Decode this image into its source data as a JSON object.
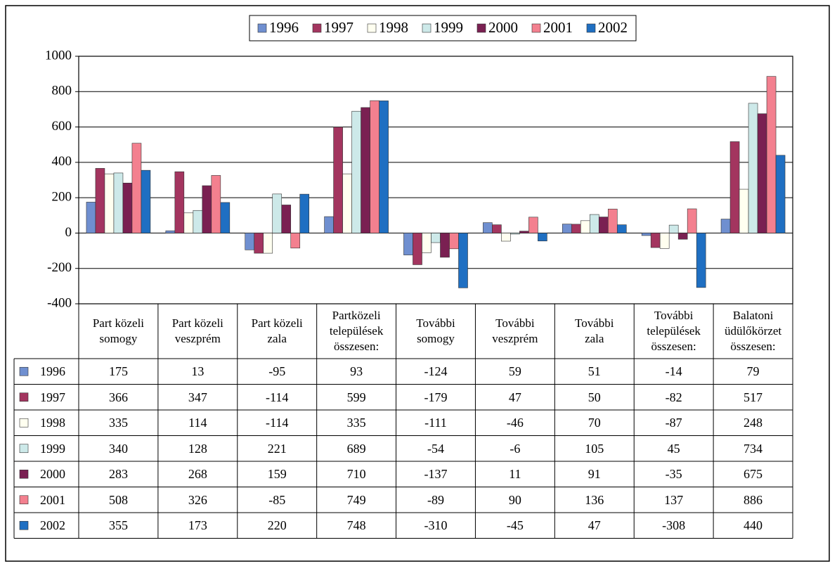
{
  "chart_data": {
    "type": "bar",
    "categories": [
      "Part közeli\nsomogy",
      "Part közeli\nveszprém",
      "Part közeli\nzala",
      "Partközeli\ntelepülések\nösszesen:",
      "További\nsomogy",
      "További\nveszprém",
      "További\nzala",
      "További\ntelepülések\nösszesen:",
      "Balatoni\nüdülőkörzet\nösszesen:"
    ],
    "series": [
      {
        "name": "1996",
        "color": "#6f8fd0",
        "values": [
          175,
          13,
          -95,
          93,
          -124,
          59,
          51,
          -14,
          79
        ]
      },
      {
        "name": "1997",
        "color": "#a3355f",
        "values": [
          366,
          347,
          -114,
          599,
          -179,
          47,
          50,
          -82,
          517
        ]
      },
      {
        "name": "1998",
        "color": "#fffff0",
        "values": [
          335,
          114,
          -114,
          335,
          -111,
          -46,
          70,
          -87,
          248
        ]
      },
      {
        "name": "1999",
        "color": "#cde9e9",
        "values": [
          340,
          128,
          221,
          689,
          -54,
          -6,
          105,
          45,
          734
        ]
      },
      {
        "name": "2000",
        "color": "#7a2052",
        "values": [
          283,
          268,
          159,
          710,
          -137,
          11,
          91,
          -35,
          675
        ]
      },
      {
        "name": "2001",
        "color": "#f3808f",
        "values": [
          508,
          326,
          -85,
          749,
          -89,
          90,
          136,
          137,
          886
        ]
      },
      {
        "name": "2002",
        "color": "#1f6fc2",
        "values": [
          355,
          173,
          220,
          748,
          -310,
          -45,
          47,
          -308,
          440
        ]
      }
    ],
    "ylim": [
      -400,
      1000
    ],
    "yticks": [
      -400,
      -200,
      0,
      200,
      400,
      600,
      800,
      1000
    ],
    "grid": true,
    "legend": "top"
  }
}
